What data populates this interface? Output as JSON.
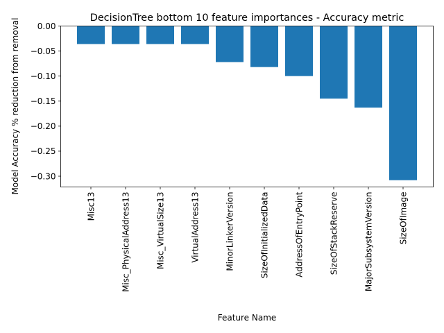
{
  "chart_data": {
    "type": "bar",
    "title": "DecisionTree bottom 10 feature importances - Accuracy metric",
    "xlabel": "Feature Name",
    "ylabel": "Model Accuracy % reduction from removal",
    "categories": [
      "Misc13",
      "Misc_PhysicalAddress13",
      "Misc_VirtualSize13",
      "VirtualAddress13",
      "MinorLinkerVersion",
      "SizeOfInitializedData",
      "AddressOfEntryPoint",
      "SizeOfStackReserve",
      "MajorSubsystemVersion",
      "SizeOfImage"
    ],
    "values": [
      -0.036,
      -0.036,
      -0.036,
      -0.036,
      -0.072,
      -0.082,
      -0.1,
      -0.145,
      -0.163,
      -0.308
    ],
    "ylim": [
      -0.3215,
      0.0
    ],
    "yticks": [
      0.0,
      -0.05,
      -0.1,
      -0.15,
      -0.2,
      -0.25,
      -0.3
    ],
    "ytick_labels": [
      "0.00",
      "−0.05",
      "−0.10",
      "−0.15",
      "−0.20",
      "−0.25",
      "−0.30"
    ],
    "bar_color": "#1f77b4",
    "grid": false,
    "legend": "none"
  }
}
